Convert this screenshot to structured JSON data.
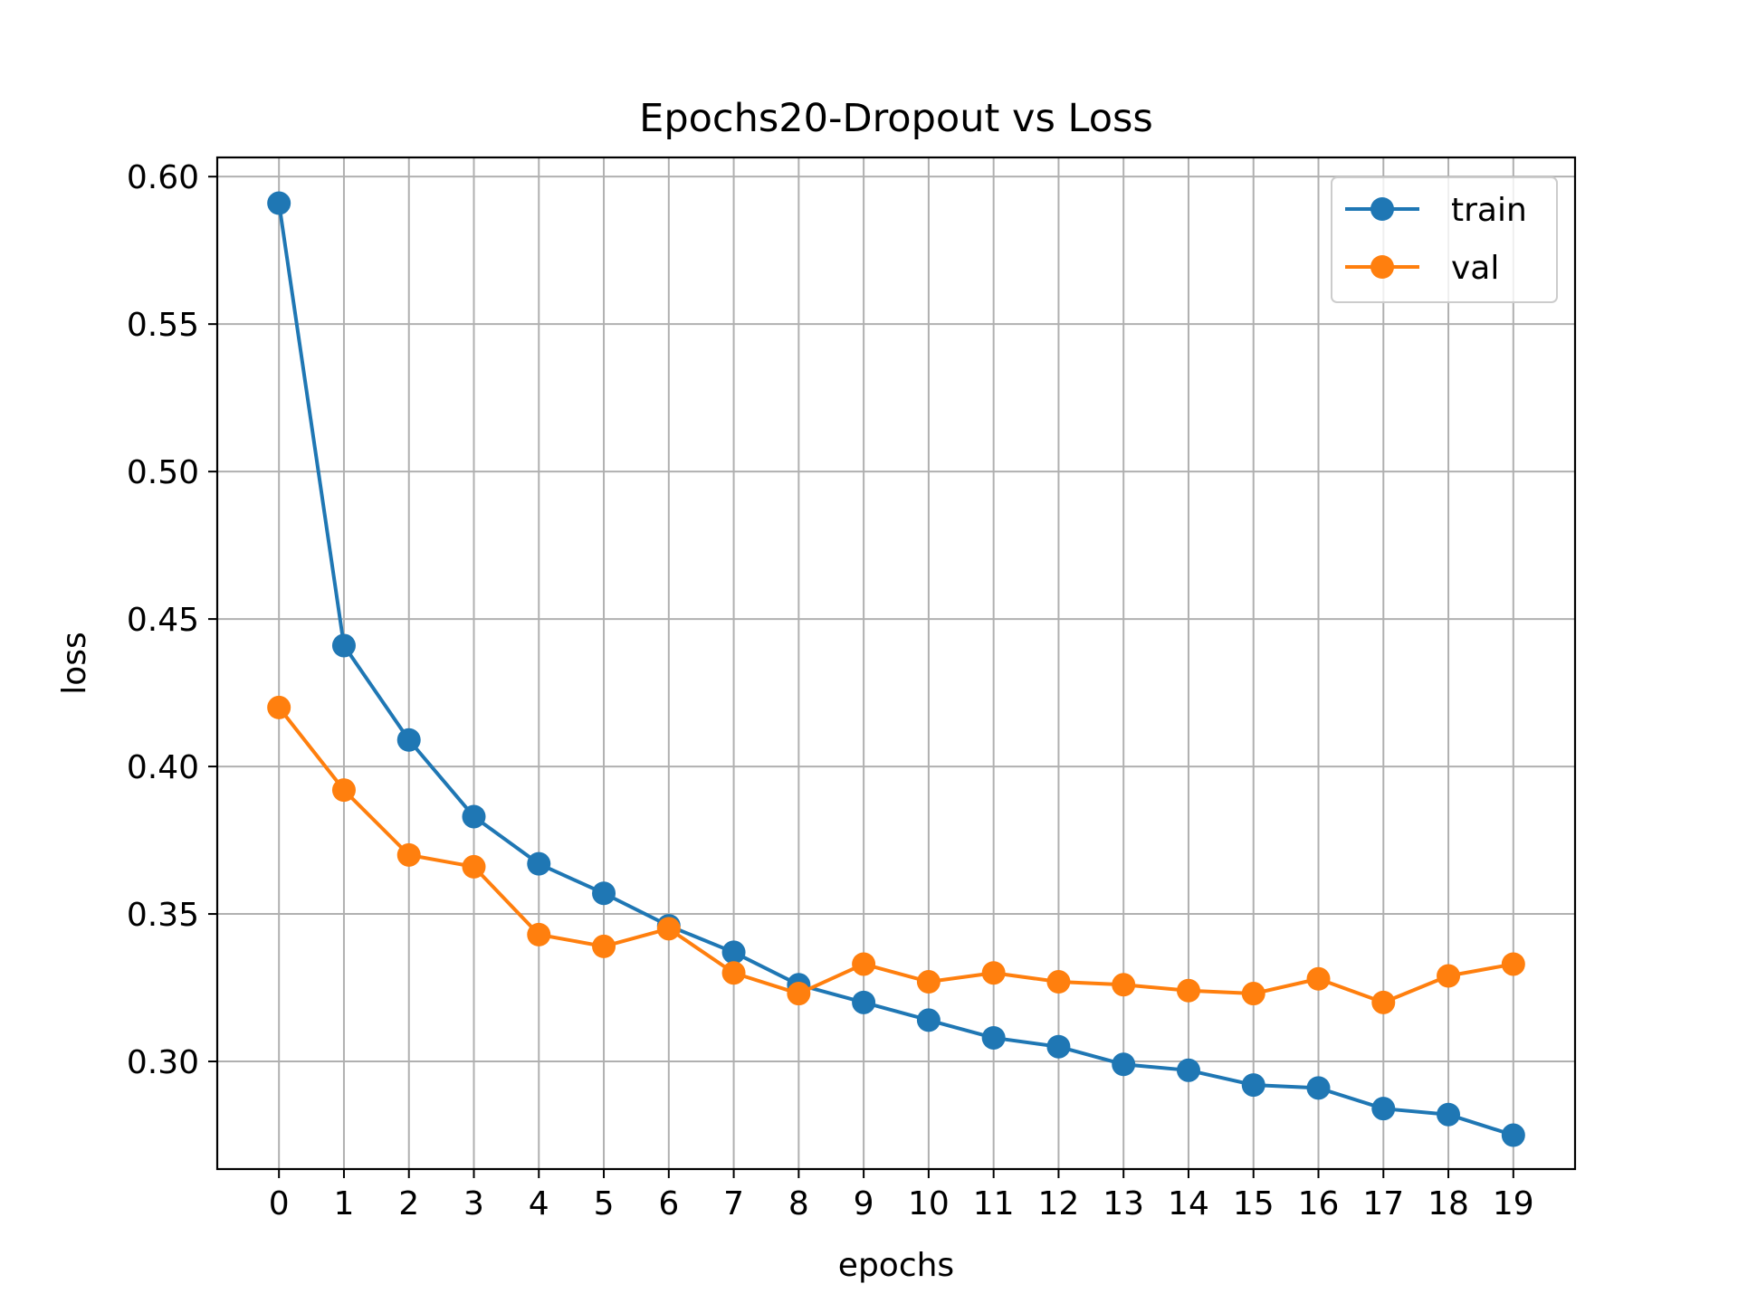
{
  "chart_data": {
    "type": "line",
    "title": "Epochs20-Dropout vs Loss",
    "xlabel": "epochs",
    "ylabel": "loss",
    "x": [
      0,
      1,
      2,
      3,
      4,
      5,
      6,
      7,
      8,
      9,
      10,
      11,
      12,
      13,
      14,
      15,
      16,
      17,
      18,
      19
    ],
    "xlim": [
      -0.95,
      19.95
    ],
    "ylim": [
      0.2635,
      0.6065
    ],
    "x_ticks": [
      "0",
      "1",
      "2",
      "3",
      "4",
      "5",
      "6",
      "7",
      "8",
      "9",
      "10",
      "11",
      "12",
      "13",
      "14",
      "15",
      "16",
      "17",
      "18",
      "19"
    ],
    "y_ticks": [
      0.3,
      0.35,
      0.4,
      0.45,
      0.5,
      0.55,
      0.6
    ],
    "y_tick_labels": [
      "0.30",
      "0.35",
      "0.40",
      "0.45",
      "0.50",
      "0.55",
      "0.60"
    ],
    "grid": true,
    "legend_position": "top-right",
    "series": [
      {
        "name": "train",
        "color": "#1f77b4",
        "marker": "circle",
        "values": [
          0.591,
          0.441,
          0.409,
          0.383,
          0.367,
          0.357,
          0.346,
          0.337,
          0.326,
          0.32,
          0.314,
          0.308,
          0.305,
          0.299,
          0.297,
          0.292,
          0.291,
          0.284,
          0.282,
          0.275
        ]
      },
      {
        "name": "val",
        "color": "#ff7f0e",
        "marker": "circle",
        "values": [
          0.42,
          0.392,
          0.37,
          0.366,
          0.343,
          0.339,
          0.345,
          0.33,
          0.323,
          0.333,
          0.327,
          0.33,
          0.327,
          0.326,
          0.324,
          0.323,
          0.328,
          0.32,
          0.329,
          0.333
        ]
      }
    ]
  }
}
